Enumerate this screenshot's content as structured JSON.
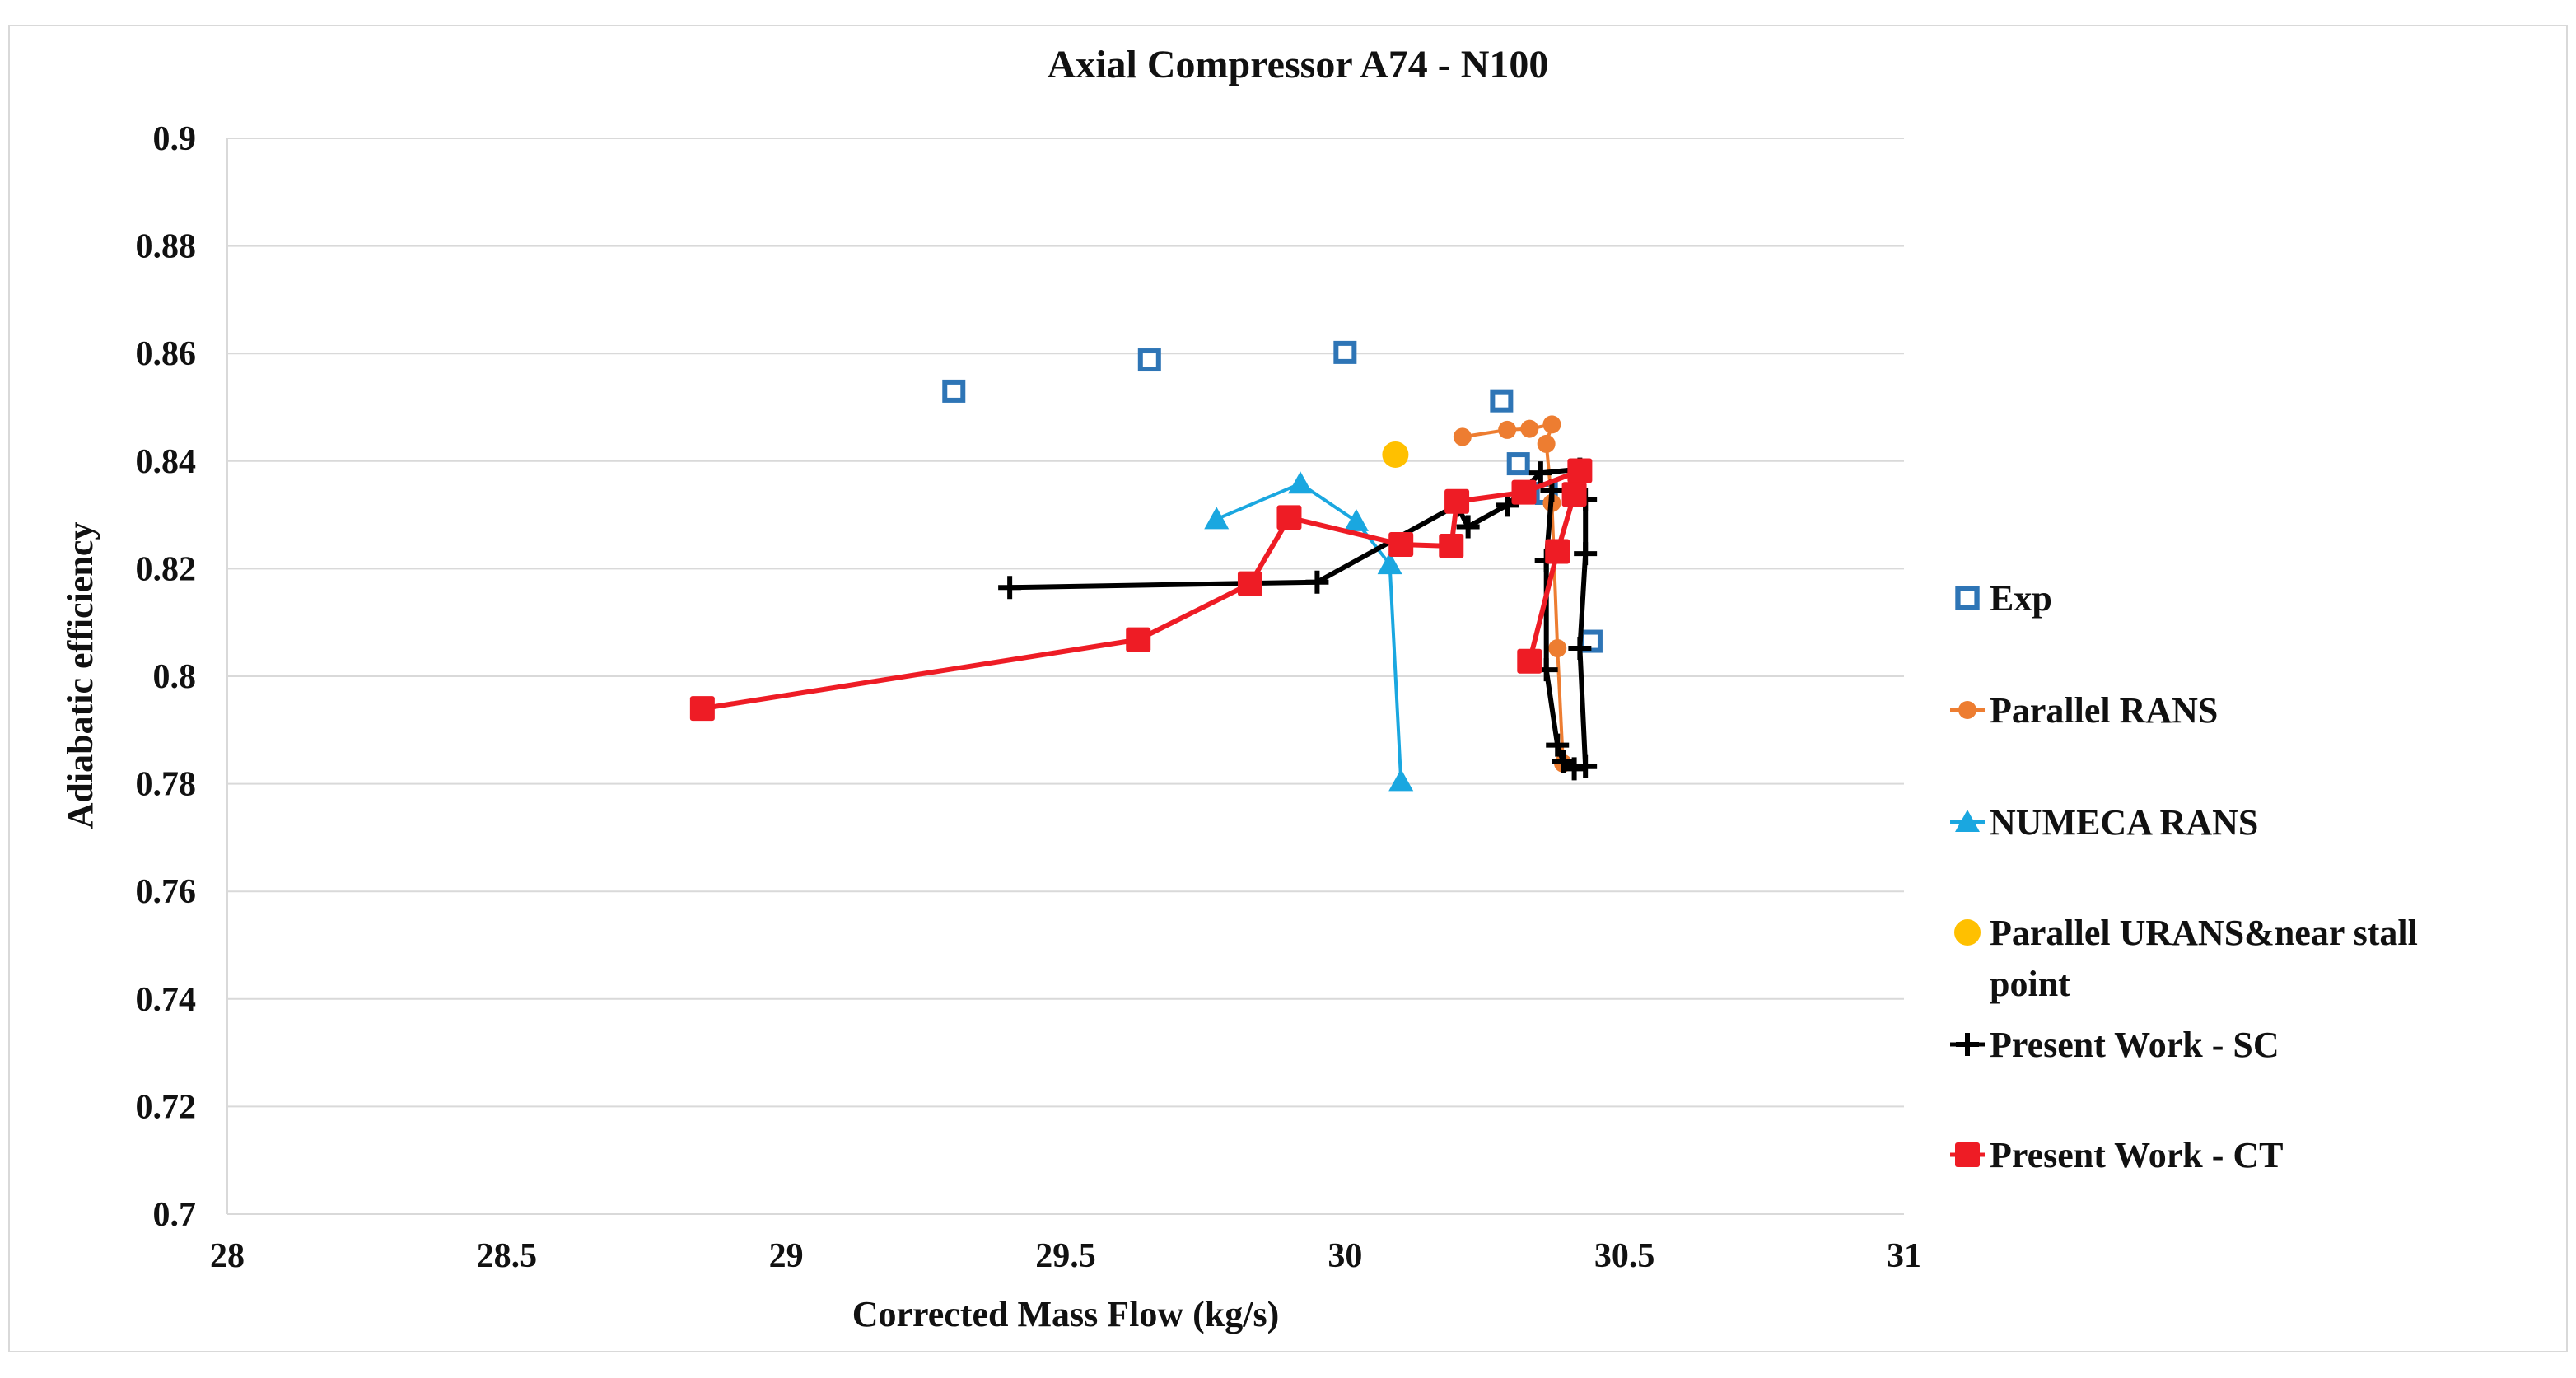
{
  "chart_data": {
    "type": "scatter",
    "title": "Axial Compressor A74 - N100",
    "xlabel": "Corrected Mass Flow (kg/s)",
    "ylabel": "Adiabatic efficiency",
    "xlim": [
      28,
      31
    ],
    "ylim": [
      0.7,
      0.9
    ],
    "x_ticks": [
      "28",
      "28.5",
      "29",
      "29.5",
      "30",
      "30.5",
      "31"
    ],
    "y_ticks": [
      "0.7",
      "0.72",
      "0.74",
      "0.76",
      "0.78",
      "0.8",
      "0.82",
      "0.84",
      "0.86",
      "0.88",
      "0.9"
    ],
    "grid": "horizontal",
    "legend_position": "right",
    "series": [
      {
        "name": "Exp",
        "label_lines": [
          "Exp"
        ],
        "color": "#2e75b6",
        "marker": "open-square",
        "line": false,
        "points": [
          [
            29.3,
            0.853
          ],
          [
            29.65,
            0.8588
          ],
          [
            30.0,
            0.8602
          ],
          [
            30.28,
            0.8512
          ],
          [
            30.31,
            0.8395
          ],
          [
            30.36,
            0.834
          ],
          [
            30.38,
            0.8232
          ],
          [
            30.44,
            0.8065
          ]
        ]
      },
      {
        "name": "Parallel RANS",
        "label_lines": [
          "Parallel RANS"
        ],
        "color": "#ed7d31",
        "marker": "circle-small",
        "line": true,
        "points": [
          [
            30.21,
            0.8445
          ],
          [
            30.29,
            0.8458
          ],
          [
            30.33,
            0.846
          ],
          [
            30.37,
            0.8468
          ],
          [
            30.36,
            0.8432
          ],
          [
            30.37,
            0.8322
          ],
          [
            30.38,
            0.8052
          ],
          [
            30.39,
            0.7838
          ]
        ]
      },
      {
        "name": "NUMECA RANS",
        "label_lines": [
          "NUMECA RANS"
        ],
        "color": "#1aa7e0",
        "marker": "triangle",
        "line": true,
        "points": [
          [
            29.77,
            0.8292
          ],
          [
            29.92,
            0.8358
          ],
          [
            30.02,
            0.8288
          ],
          [
            30.08,
            0.8208
          ],
          [
            30.1,
            0.7805
          ]
        ]
      },
      {
        "name": "Parallel URANS&near stall point",
        "label_lines": [
          "Parallel URANS&near stall",
          "point"
        ],
        "color": "#ffc000",
        "marker": "circle",
        "line": false,
        "points": [
          [
            30.09,
            0.8412
          ]
        ]
      },
      {
        "name": "Present Work - SC",
        "label_lines": [
          "Present Work - SC"
        ],
        "color": "#000000",
        "marker": "plus",
        "line": true,
        "points": [
          [
            29.4,
            0.8165
          ],
          [
            29.95,
            0.8175
          ],
          [
            30.2,
            0.8318
          ],
          [
            30.22,
            0.8278
          ],
          [
            30.29,
            0.8318
          ],
          [
            30.35,
            0.8378
          ],
          [
            30.42,
            0.8385
          ],
          [
            30.43,
            0.8328
          ],
          [
            30.43,
            0.8228
          ],
          [
            30.42,
            0.8052
          ],
          [
            30.43,
            0.7832
          ],
          [
            30.41,
            0.7828
          ],
          [
            30.39,
            0.7842
          ],
          [
            30.38,
            0.7872
          ],
          [
            30.36,
            0.8012
          ],
          [
            30.36,
            0.8215
          ],
          [
            30.37,
            0.8345
          ]
        ]
      },
      {
        "name": "Present Work - CT",
        "label_lines": [
          "Present Work - CT"
        ],
        "color": "#ee1c25",
        "marker": "square",
        "line": true,
        "points": [
          [
            28.85,
            0.794
          ],
          [
            29.63,
            0.8068
          ],
          [
            29.83,
            0.8172
          ],
          [
            29.9,
            0.8295
          ],
          [
            30.1,
            0.8245
          ],
          [
            30.19,
            0.8242
          ],
          [
            30.2,
            0.8325
          ],
          [
            30.32,
            0.8342
          ],
          [
            30.42,
            0.8382
          ],
          [
            30.41,
            0.8338
          ],
          [
            30.38,
            0.8232
          ],
          [
            30.33,
            0.8028
          ]
        ]
      }
    ]
  }
}
